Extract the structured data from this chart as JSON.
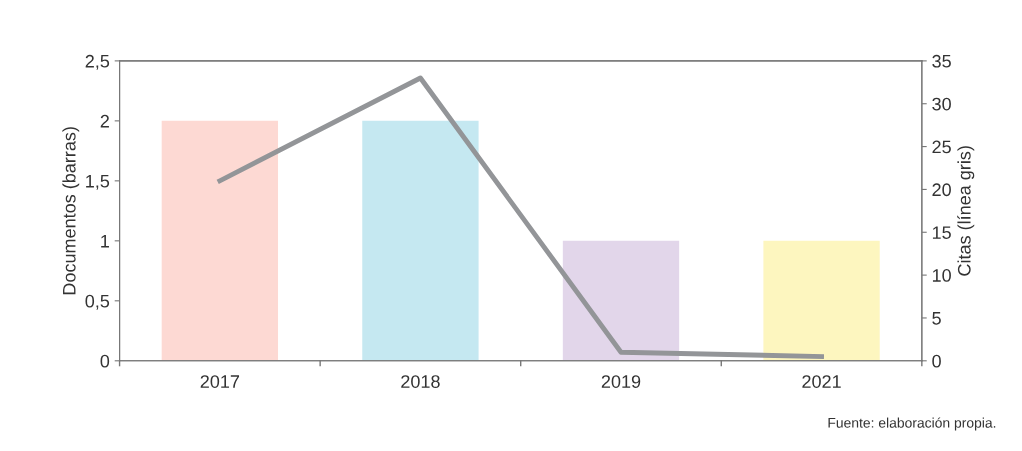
{
  "chart_data": {
    "type": "bar",
    "categories": [
      "2017",
      "2018",
      "2019",
      "2021"
    ],
    "ylabel": "Documentos (barras)",
    "y2label": "Citas (línea gris)",
    "series": [
      {
        "colors": [
          "#fdd9d3",
          "#c5e8f1",
          "#e2d6ea",
          "#fdf6bf"
        ],
        "values": [
          2,
          2,
          1,
          1
        ]
      },
      {
        "type": "line",
        "axis": "y2",
        "color": "#939598",
        "values": [
          21,
          33,
          1,
          0.5
        ]
      }
    ],
    "ylim": [
      0,
      2.5
    ],
    "yticks": [
      0,
      {
        "value": 0.5,
        "label": "0,5"
      },
      1,
      {
        "value": 1.5,
        "label": "1,5"
      },
      2,
      {
        "value": 2.5,
        "label": "2,5"
      }
    ],
    "y2lim": [
      0,
      35
    ],
    "y2ticks": [
      0,
      5,
      10,
      15,
      20,
      25,
      30,
      35
    ],
    "annotations": [
      "Fuente: elaboración propia."
    ]
  }
}
